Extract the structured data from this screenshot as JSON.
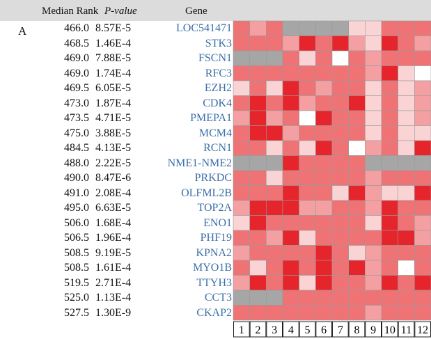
{
  "panel_label": "A",
  "header": {
    "rank": "Median Rank",
    "pvalue": "P-value",
    "gene": "Gene"
  },
  "table": {
    "rows": [
      [
        "466.0",
        "8.57E-5",
        "LOC541471"
      ],
      [
        "468.5",
        "1.46E-4",
        "STK3"
      ],
      [
        "469.0",
        "7.88E-5",
        "FSCN1"
      ],
      [
        "469.0",
        "1.74E-4",
        "RFC3"
      ],
      [
        "469.5",
        "6.05E-5",
        "EZH2"
      ],
      [
        "473.0",
        "1.87E-4",
        "CDK4"
      ],
      [
        "473.5",
        "4.71E-5",
        "PMEPA1"
      ],
      [
        "475.0",
        "3.88E-5",
        "MCM4"
      ],
      [
        "484.5",
        "4.13E-5",
        "RCN1"
      ],
      [
        "488.0",
        "2.22E-5",
        "NME1-NME2"
      ],
      [
        "490.0",
        "8.47E-6",
        "PRKDC"
      ],
      [
        "491.0",
        "2.08E-4",
        "OLFML2B"
      ],
      [
        "495.0",
        "6.63E-5",
        "TOP2A"
      ],
      [
        "506.0",
        "1.68E-4",
        "ENO1"
      ],
      [
        "506.5",
        "1.96E-4",
        "PHF19"
      ],
      [
        "508.5",
        "9.19E-5",
        "KPNA2"
      ],
      [
        "508.5",
        "1.61E-4",
        "MYO1B"
      ],
      [
        "519.5",
        "2.71E-4",
        "TTYH3"
      ],
      [
        "525.0",
        "1.13E-4",
        "CCT3"
      ],
      [
        "527.5",
        "1.30E-9",
        "CKAP2"
      ]
    ]
  },
  "heatmap": {
    "columns": [
      1,
      2,
      3,
      4,
      5,
      6,
      7,
      8,
      9,
      10,
      11,
      12
    ],
    "cells": [
      [
        "#ef7275",
        "#f4a0a2",
        "#ef7275",
        "#a6a6a6",
        "#a6a6a6",
        "#a6a6a6",
        "#a6a6a6",
        "#fad4d5",
        "#fad4d5",
        "#ef7275",
        "#ef7275",
        "#ef7275"
      ],
      [
        "#ef7275",
        "#ef7275",
        "#ef7275",
        "#f4a0a2",
        "#e5252b",
        "#ef7275",
        "#e5252b",
        "#f4a0a2",
        "#fad4d5",
        "#e5252b",
        "#ef7275",
        "#f4a0a2"
      ],
      [
        "#a6a6a6",
        "#a6a6a6",
        "#a6a6a6",
        "#ef7275",
        "#fad4d5",
        "#ef7275",
        "#ffffff",
        "#ef7275",
        "#f4a0a2",
        "#ef7275",
        "#ef7275",
        "#ef7275"
      ],
      [
        "#ef7275",
        "#ef7275",
        "#ef7275",
        "#ef7275",
        "#ef7275",
        "#ef7275",
        "#ef7275",
        "#ef7275",
        "#f4a0a2",
        "#e5252b",
        "#fad4d5",
        "#ffffff"
      ],
      [
        "#fad4d5",
        "#ef7275",
        "#fad4d5",
        "#e5252b",
        "#ef7275",
        "#f4a0a2",
        "#ef7275",
        "#ef7275",
        "#fad4d5",
        "#ef7275",
        "#fad4d5",
        "#f4a0a2"
      ],
      [
        "#ef7275",
        "#e5252b",
        "#ef7275",
        "#e5252b",
        "#f4a0a2",
        "#ef7275",
        "#ef7275",
        "#e5252b",
        "#fad4d5",
        "#ef7275",
        "#fad4d5",
        "#f4a0a2"
      ],
      [
        "#f4a0a2",
        "#e5252b",
        "#f4a0a2",
        "#ef7275",
        "#ffffff",
        "#e5252b",
        "#ef7275",
        "#ef7275",
        "#fad4d5",
        "#ef7275",
        "#fad4d5",
        "#f4a0a2"
      ],
      [
        "#ef7275",
        "#e5252b",
        "#e5252b",
        "#f4a0a2",
        "#ef7275",
        "#ef7275",
        "#ef7275",
        "#ef7275",
        "#fad4d5",
        "#ef7275",
        "#fad4d5",
        "#fad4d5"
      ],
      [
        "#ef7275",
        "#ef7275",
        "#fad4d5",
        "#ef7275",
        "#fad4d5",
        "#e5252b",
        "#ef7275",
        "#ffffff",
        "#f4a0a2",
        "#ef7275",
        "#fad4d5",
        "#e5252b"
      ],
      [
        "#a6a6a6",
        "#a6a6a6",
        "#a6a6a6",
        "#e5252b",
        "#ef7275",
        "#ef7275",
        "#ef7275",
        "#ef7275",
        "#a6a6a6",
        "#a6a6a6",
        "#a6a6a6",
        "#a6a6a6"
      ],
      [
        "#ef7275",
        "#ef7275",
        "#fad4d5",
        "#ef7275",
        "#ef7275",
        "#ef7275",
        "#ef7275",
        "#ef7275",
        "#f4a0a2",
        "#ef7275",
        "#ef7275",
        "#ef7275"
      ],
      [
        "#ef7275",
        "#ef7275",
        "#ef7275",
        "#e5252b",
        "#ef7275",
        "#ef7275",
        "#fad4d5",
        "#e5252b",
        "#f4a0a2",
        "#fad4d5",
        "#fad4d5",
        "#e5252b"
      ],
      [
        "#f4a0a2",
        "#e5252b",
        "#e5252b",
        "#e5252b",
        "#f4a0a2",
        "#f4a0a2",
        "#ef7275",
        "#ef7275",
        "#f4a0a2",
        "#e5252b",
        "#ef7275",
        "#ef7275"
      ],
      [
        "#fad4d5",
        "#e5252b",
        "#ef7275",
        "#ef7275",
        "#ef7275",
        "#ef7275",
        "#ef7275",
        "#ef7275",
        "#fad4d5",
        "#e5252b",
        "#ef7275",
        "#f4a0a2"
      ],
      [
        "#ef7275",
        "#ef7275",
        "#f4a0a2",
        "#e5252b",
        "#fad4d5",
        "#ef7275",
        "#ef7275",
        "#ef7275",
        "#ef7275",
        "#e5252b",
        "#e5252b",
        "#f4a0a2"
      ],
      [
        "#f4a0a2",
        "#ef7275",
        "#ef7275",
        "#ef7275",
        "#ef7275",
        "#e5252b",
        "#ef7275",
        "#fad4d5",
        "#f4a0a2",
        "#ef7275",
        "#ef7275",
        "#ef7275"
      ],
      [
        "#ef7275",
        "#fad4d5",
        "#ef7275",
        "#e5252b",
        "#ef7275",
        "#e5252b",
        "#ef7275",
        "#e5252b",
        "#f4a0a2",
        "#ef7275",
        "#ffffff",
        "#ef7275"
      ],
      [
        "#f4a0a2",
        "#e5252b",
        "#ef7275",
        "#e5252b",
        "#fad4d5",
        "#e5252b",
        "#ef7275",
        "#ef7275",
        "#f4a0a2",
        "#e5252b",
        "#ef7275",
        "#e5252b"
      ],
      [
        "#a6a6a6",
        "#a6a6a6",
        "#a6a6a6",
        "#ef7275",
        "#ef7275",
        "#ef7275",
        "#ef7275",
        "#ef7275",
        "#ef7275",
        "#ef7275",
        "#ef7275",
        "#ef7275"
      ],
      [
        "#ef7275",
        "#ef7275",
        "#ef7275",
        "#ef7275",
        "#ef7275",
        "#ef7275",
        "#ef7275",
        "#ef7275",
        "#f4a0a2",
        "#ef7275",
        "#ef7275",
        "#ef7275"
      ]
    ]
  }
}
